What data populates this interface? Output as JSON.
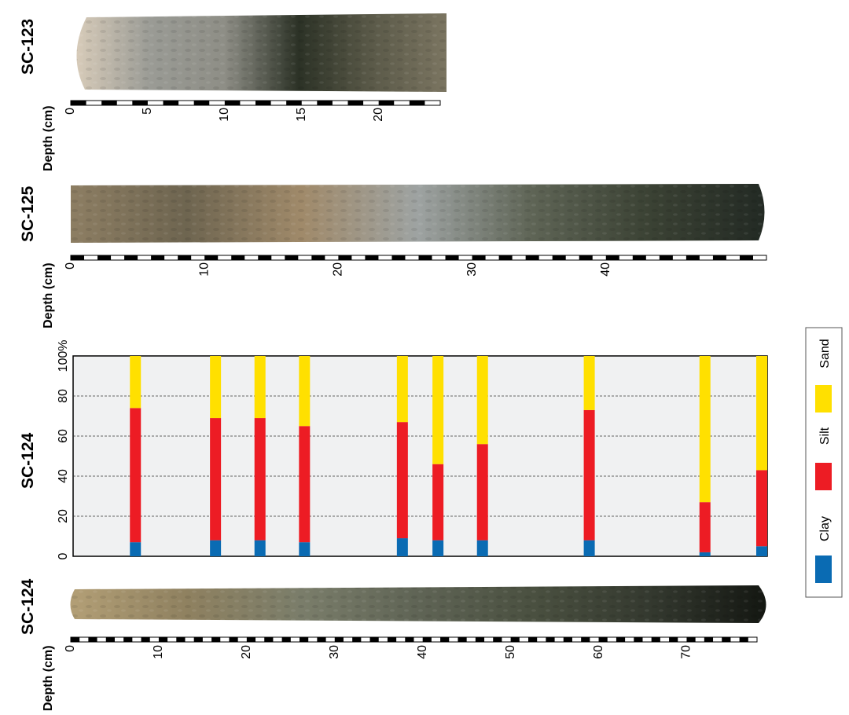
{
  "cores": [
    {
      "label": "SC-123",
      "depth_axis_label": "Depth (cm)",
      "max_depth_cm": 24,
      "ticks": [
        "0",
        "5",
        "10",
        "15",
        "20"
      ],
      "photo_colors": [
        "#d7cbb9",
        "#9a9b95",
        "#8e8e86",
        "#2c3226",
        "#5b5a49",
        "#7b7561"
      ]
    },
    {
      "label": "SC-125",
      "depth_axis_label": "Depth (cm)",
      "max_depth_cm": 52,
      "ticks": [
        "0",
        "10",
        "20",
        "30",
        "40"
      ],
      "photo_colors": [
        "#8d7e63",
        "#6e6550",
        "#a08a6a",
        "#9ea3a2",
        "#5e6455",
        "#3b4234",
        "#232a24"
      ]
    },
    {
      "label": "SC-124",
      "depth_axis_label": "Depth (cm)",
      "max_depth_cm": 78,
      "ticks": [
        "0",
        "10",
        "20",
        "30",
        "40",
        "50",
        "60",
        "70"
      ],
      "photo_colors": [
        "#b39f76",
        "#8f8160",
        "#7a7d6a",
        "#5f6455",
        "#4a5040",
        "#34392f",
        "#141712"
      ]
    }
  ],
  "chart_data": {
    "type": "bar",
    "stacked": true,
    "title": "SC-124",
    "x_label": "",
    "y_label": "",
    "x_lim": [
      0,
      78
    ],
    "y_lim": [
      0,
      100
    ],
    "y_ticks": [
      "0",
      "20",
      "40",
      "60",
      "80",
      "100%"
    ],
    "grid": "dashed horizontal",
    "legend_position": "right",
    "colors": {
      "Clay": "#0a6bb3",
      "Silt": "#ed1c24",
      "Sand": "#ffe000"
    },
    "x": [
      7,
      16,
      21,
      26,
      37,
      41,
      46,
      58,
      71,
      78.5
    ],
    "series": [
      {
        "name": "Clay",
        "values": [
          7,
          8,
          8,
          7,
          9,
          8,
          8,
          8,
          2,
          5
        ]
      },
      {
        "name": "Silt",
        "values": [
          67,
          61,
          61,
          58,
          58,
          38,
          48,
          65,
          25,
          38
        ]
      },
      {
        "name": "Sand",
        "values": [
          26,
          31,
          31,
          35,
          33,
          54,
          44,
          27,
          73,
          57
        ]
      }
    ]
  }
}
